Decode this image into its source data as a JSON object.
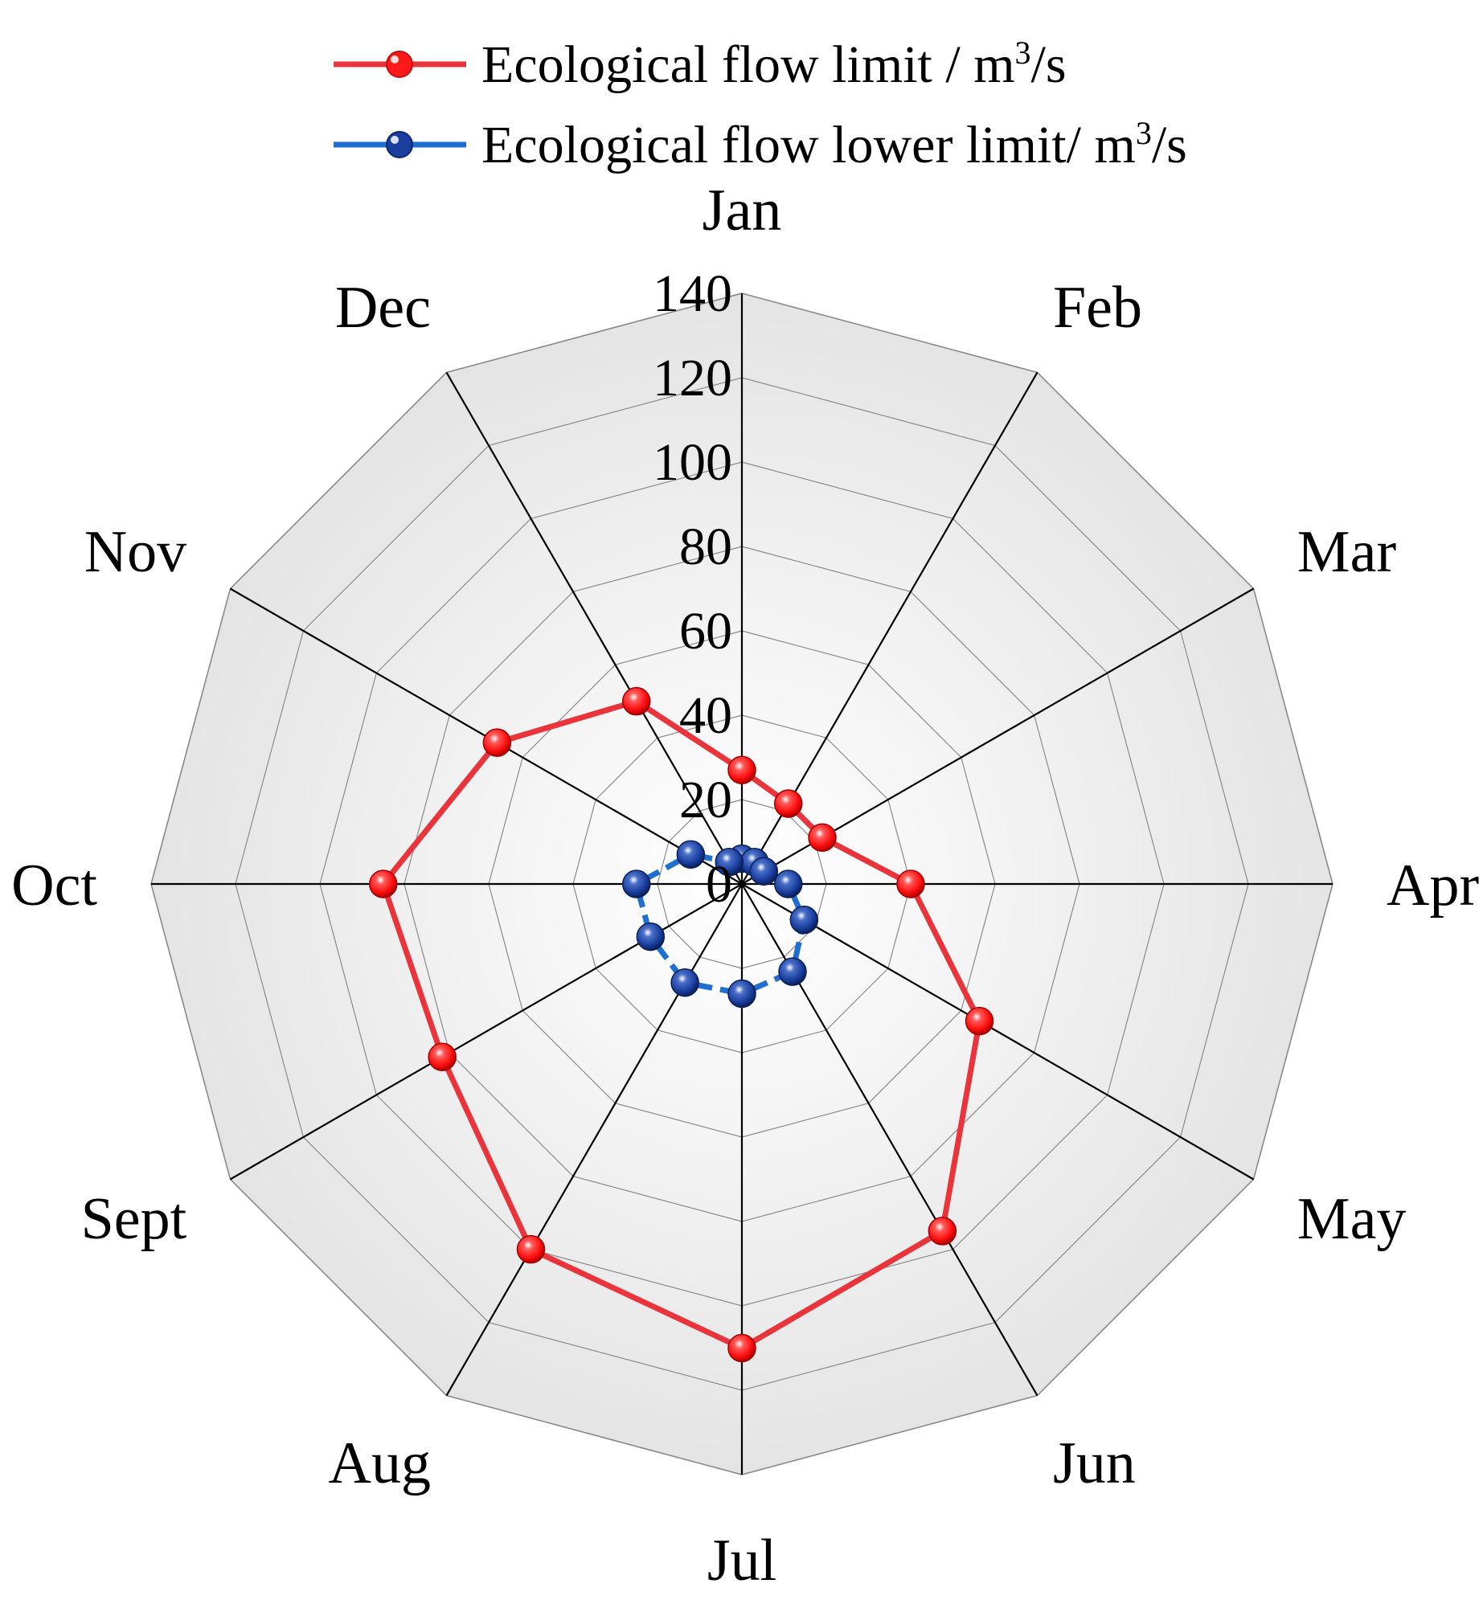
{
  "chart_data": {
    "type": "radar",
    "categories": [
      "Jan",
      "Feb",
      "Mar",
      "Apr",
      "May",
      "Jun",
      "Jul",
      "Aug",
      "Sept",
      "Oct",
      "Nov",
      "Dec"
    ],
    "series": [
      {
        "name": "Ecological flow limit / m",
        "unit_sup": "3",
        "unit_tail": "/s",
        "color": "#e8343a",
        "marker_color": "#ff1a1a",
        "line_style": "solid",
        "values": [
          27,
          22,
          22,
          40,
          65,
          95,
          110,
          100,
          82,
          85,
          67,
          50
        ]
      },
      {
        "name": "Ecological flow lower limit/ m",
        "unit_sup": "3",
        "unit_tail": "/s",
        "color": "#1f6fd1",
        "marker_color": "#1a3f9e",
        "line_style": "dashed",
        "values": [
          6,
          6,
          6,
          11,
          17,
          24,
          26,
          27,
          25,
          25,
          14,
          6
        ]
      }
    ],
    "r_ticks": [
      "0",
      "20",
      "40",
      "60",
      "80",
      "100",
      "120",
      "140"
    ],
    "rlim": [
      0,
      140
    ],
    "grid": true,
    "legend_position": "top"
  }
}
